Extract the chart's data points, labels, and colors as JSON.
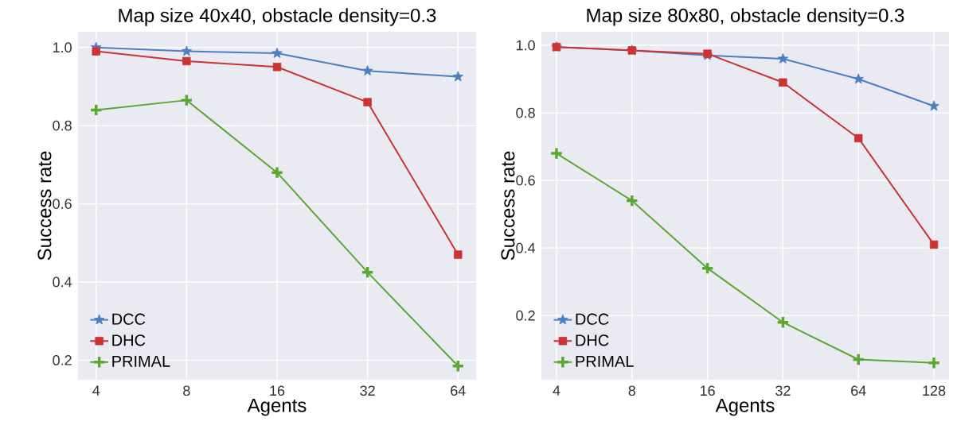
{
  "chart_data": [
    {
      "type": "line",
      "title": "Map size 40x40, obstacle density=0.3",
      "xlabel": "Agents",
      "ylabel": "Success rate",
      "categories": [
        "4",
        "8",
        "16",
        "32",
        "64"
      ],
      "ylim": [
        0.15,
        1.04
      ],
      "yticks": [
        0.2,
        0.4,
        0.6,
        0.8,
        {
          "value": 1.0,
          "label": "1.0"
        }
      ],
      "grid": true,
      "legend": "bottom left",
      "line_style": "solid",
      "series": [
        {
          "name": "DCC",
          "color": "#4a7fc0",
          "marker": "star",
          "values": [
            1.0,
            0.99,
            0.985,
            0.94,
            0.925
          ]
        },
        {
          "name": "DHC",
          "color": "#cc3333",
          "marker": "square",
          "values": [
            0.99,
            0.965,
            0.95,
            0.86,
            0.47
          ]
        },
        {
          "name": "PRIMAL",
          "color": "#5aa832",
          "marker": "cross",
          "values": [
            0.84,
            0.865,
            0.68,
            0.425,
            0.185
          ]
        }
      ]
    },
    {
      "type": "line",
      "title": "Map size 80x80, obstacle density=0.3",
      "xlabel": "Agents",
      "ylabel": "Success rate",
      "categories": [
        "4",
        "8",
        "16",
        "32",
        "64",
        "128"
      ],
      "ylim": [
        0.01,
        1.04
      ],
      "yticks": [
        0.2,
        0.4,
        0.6,
        0.8,
        {
          "value": 1.0,
          "label": "1.0"
        }
      ],
      "grid": true,
      "legend": "bottom left",
      "line_style": "solid",
      "series": [
        {
          "name": "DCC",
          "color": "#4a7fc0",
          "marker": "star",
          "values": [
            0.995,
            0.985,
            0.97,
            0.96,
            0.9,
            0.82
          ]
        },
        {
          "name": "DHC",
          "color": "#cc3333",
          "marker": "square",
          "values": [
            0.995,
            0.985,
            0.975,
            0.89,
            0.725,
            0.41
          ]
        },
        {
          "name": "PRIMAL",
          "color": "#5aa832",
          "marker": "cross",
          "values": [
            0.68,
            0.54,
            0.34,
            0.18,
            0.07,
            0.06
          ]
        }
      ]
    }
  ]
}
